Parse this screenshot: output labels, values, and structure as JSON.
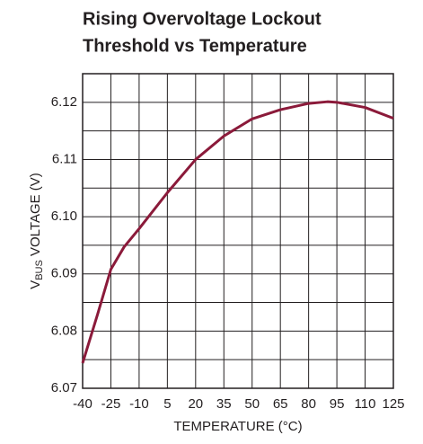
{
  "chart_data": {
    "type": "line",
    "title": [
      "Rising Overvoltage Lockout",
      "Threshold vs Temperature"
    ],
    "xlabel": "TEMPERATURE (°C)",
    "ylabel": {
      "main": "V",
      "sub": "BUS",
      "rest": " VOLTAGE (V)"
    },
    "x": [
      -40,
      -32,
      -25,
      -18,
      -10,
      5,
      20,
      35,
      50,
      65,
      80,
      90,
      95,
      110,
      125
    ],
    "series": [
      {
        "name": "VBUS",
        "color": "#8b1a3a",
        "values": [
          6.0744,
          6.083,
          6.0908,
          6.0947,
          6.0979,
          6.1042,
          6.11,
          6.1141,
          6.1171,
          6.1187,
          6.1198,
          6.1201,
          6.12,
          6.1191,
          6.1172
        ]
      }
    ],
    "xlim": [
      -40,
      125
    ],
    "xticks": [
      -40,
      -25,
      -10,
      5,
      20,
      35,
      50,
      65,
      80,
      95,
      110,
      125
    ],
    "ylim": [
      6.07,
      6.125
    ],
    "yticks": [
      6.07,
      {
        "value": 6.075,
        "label": null
      },
      6.08,
      {
        "value": 6.085,
        "label": null
      },
      6.09,
      {
        "value": 6.095,
        "label": null
      },
      {
        "value": 6.1,
        "label": "6.10"
      },
      {
        "value": 6.105,
        "label": null
      },
      6.11,
      {
        "value": 6.115,
        "label": null
      },
      6.12,
      {
        "value": 6.125,
        "label": null
      }
    ],
    "grid": true
  }
}
